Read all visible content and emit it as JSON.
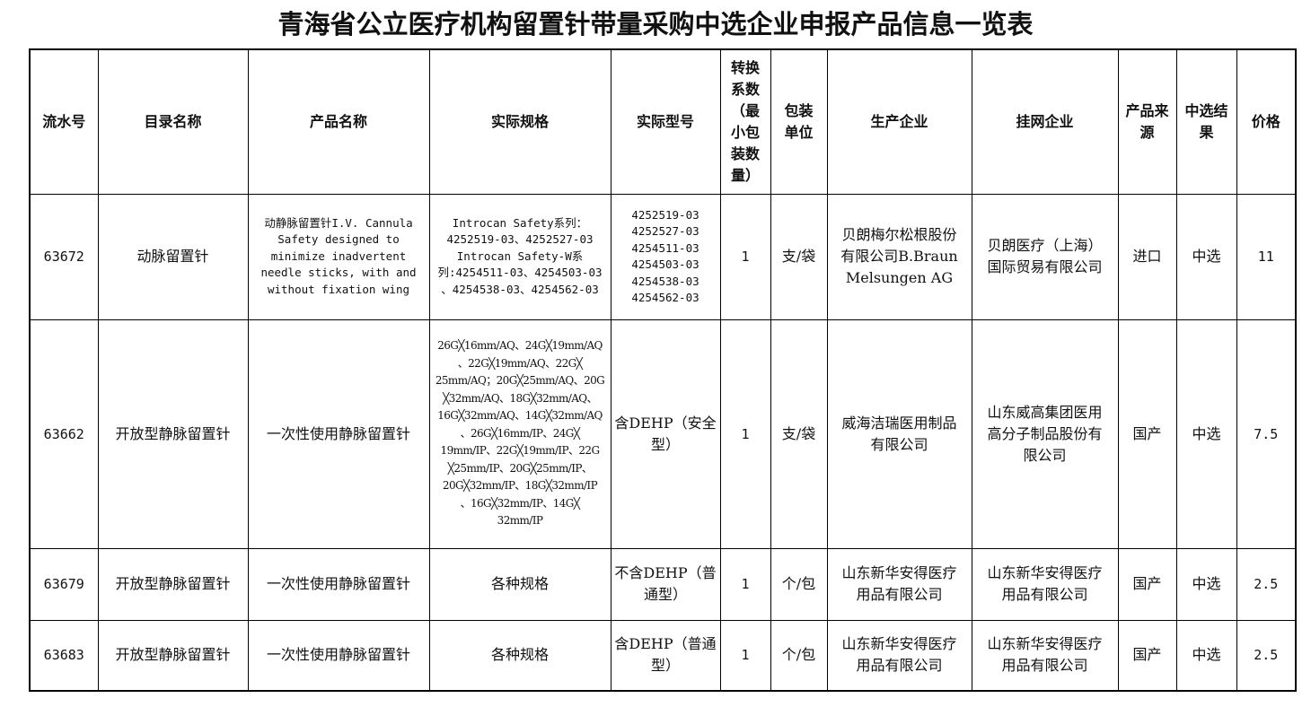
{
  "title": "青海省公立医疗机构留置针带量采购中选企业申报产品信息一览表",
  "headers": [
    "流水号",
    "目录名称",
    "产品名称",
    "实际规格",
    "实际型号",
    "转换\n系数\n（最\n小包\n装数\n量）",
    "包装\n单位",
    "生产企业",
    "挂网企业",
    "产品来\n源",
    "中选结\n果",
    "价格"
  ],
  "rows": [
    [
      "63672",
      "动脉留置针",
      "动静脉留置针I.V. Cannula\nSafety designed to\nminimize inadvertent\nneedle sticks, with and\nwithout fixation wing",
      "Introcan Safety系列：\n4252519-03、4252527-03\nIntrocan Safety-W系\n列:4254511-03、4254503-03\n、4254538-03、4254562-03",
      "4252519-03\n4252527-03\n4254511-03\n4254503-03\n4254538-03\n4254562-03",
      "1",
      "支/袋",
      "贝朗梅尔松根股份\n有限公司B.Braun\nMelsungen AG",
      "贝朗医疗（上海）\n国际贸易有限公司",
      "进口",
      "中选",
      "11"
    ],
    [
      "63662",
      "开放型静脉留置针",
      "一次性使用静脉留置针",
      "26G╳16mm/AQ、24G╳19mm/AQ\n、22G╳19mm/AQ、22G╳\n25mm/AQ；20G╳25mm/AQ、20G\n╳32mm/AQ、18G╳32mm/AQ、\n16G╳32mm/AQ、14G╳32mm/AQ\n、26G╳16mm/IP、24G╳\n19mm/IP、22G╳19mm/IP、22G\n╳25mm/IP、20G╳25mm/IP、\n20G╳32mm/IP、18G╳32mm/IP\n、16G╳32mm/IP、14G╳\n32mm/IP",
      "含DEHP（安全\n型）",
      "1",
      "支/袋",
      "威海洁瑞医用制品\n有限公司",
      "山东威高集团医用\n高分子制品股份有\n限公司",
      "国产",
      "中选",
      "7.5"
    ],
    [
      "63679",
      "开放型静脉留置针",
      "一次性使用静脉留置针",
      "各种规格",
      "不含DEHP（普\n通型）",
      "1",
      "个/包",
      "山东新华安得医疗\n用品有限公司",
      "山东新华安得医疗\n用品有限公司",
      "国产",
      "中选",
      "2.5"
    ],
    [
      "63683",
      "开放型静脉留置针",
      "一次性使用静脉留置针",
      "各种规格",
      "含DEHP（普通\n型）",
      "1",
      "个/包",
      "山东新华安得医疗\n用品有限公司",
      "山东新华安得医疗\n用品有限公司",
      "国产",
      "中选",
      "2.5"
    ]
  ]
}
